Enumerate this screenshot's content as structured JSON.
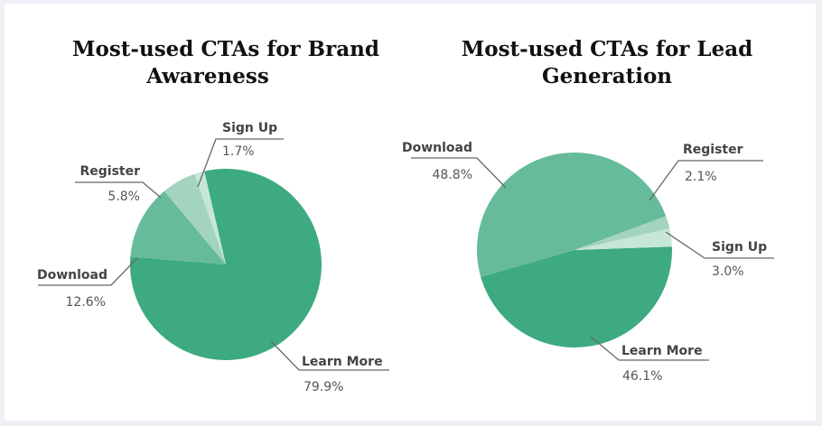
{
  "chart_data": [
    {
      "type": "pie",
      "title": "Most-used CTAs for Brand Awareness",
      "title_lines": [
        "Most-used CTAs for Brand",
        "Awareness"
      ],
      "slices": [
        {
          "label": "Learn More",
          "value": 79.9,
          "display": "79.9%",
          "color": "#3daa80"
        },
        {
          "label": "Download",
          "value": 12.6,
          "display": "12.6%",
          "color": "#66bb9a"
        },
        {
          "label": "Register",
          "value": 5.8,
          "display": "5.8%",
          "color": "#a2d4bf"
        },
        {
          "label": "Sign Up",
          "value": 1.7,
          "display": "1.7%",
          "color": "#c6e6d7"
        }
      ]
    },
    {
      "type": "pie",
      "title": "Most-used CTAs for Lead Generation",
      "title_lines": [
        "Most-used CTAs for Lead",
        "Generation"
      ],
      "slices": [
        {
          "label": "Learn More",
          "value": 46.1,
          "display": "46.1%",
          "color": "#3daa80"
        },
        {
          "label": "Download",
          "value": 48.8,
          "display": "48.8%",
          "color": "#66bb9a"
        },
        {
          "label": "Register",
          "value": 2.1,
          "display": "2.1%",
          "color": "#a2d4bf"
        },
        {
          "label": "Sign Up",
          "value": 3.0,
          "display": "3.0%",
          "color": "#c6e6d7"
        }
      ]
    }
  ]
}
